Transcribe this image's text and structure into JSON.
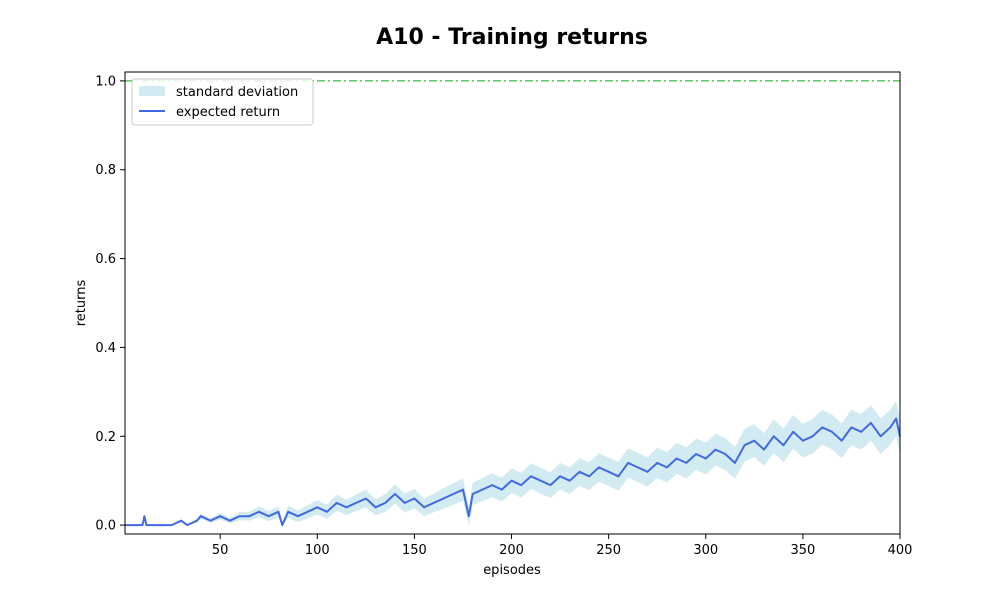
{
  "chart_data": {
    "type": "line",
    "title": "A10 - Training returns",
    "xlabel": "episodes",
    "ylabel": "returns",
    "xlim": [
      1,
      400
    ],
    "ylim": [
      -0.02,
      1.02
    ],
    "xticks": [
      50,
      100,
      150,
      200,
      250,
      300,
      350,
      400
    ],
    "yticks": [
      0.0,
      0.2,
      0.4,
      0.6,
      0.8,
      1.0
    ],
    "ytick_labels": [
      "0.0",
      "0.2",
      "0.4",
      "0.6",
      "0.8",
      "1.0"
    ],
    "grid": false,
    "legend": {
      "position": "upper-left",
      "entries": [
        "standard deviation",
        "expected return"
      ]
    },
    "reference_line": {
      "y": 1.0,
      "style": "dash-dot",
      "color": "#3cb83c"
    },
    "colors": {
      "mean": "#4169e1",
      "band": "#add8e6"
    },
    "series": [
      {
        "name": "expected return",
        "x": [
          1,
          10,
          11,
          12,
          20,
          25,
          30,
          33,
          38,
          40,
          45,
          50,
          55,
          60,
          65,
          70,
          75,
          80,
          82,
          85,
          90,
          95,
          100,
          105,
          110,
          115,
          120,
          125,
          130,
          135,
          140,
          145,
          150,
          155,
          160,
          165,
          170,
          175,
          178,
          180,
          185,
          190,
          195,
          200,
          205,
          210,
          215,
          220,
          225,
          230,
          235,
          240,
          245,
          250,
          255,
          260,
          265,
          270,
          275,
          280,
          285,
          290,
          295,
          300,
          305,
          310,
          315,
          320,
          325,
          330,
          335,
          340,
          345,
          350,
          355,
          360,
          365,
          370,
          375,
          380,
          385,
          390,
          395,
          398,
          400
        ],
        "values": [
          0.0,
          0.0,
          0.02,
          0.0,
          0.0,
          0.0,
          0.01,
          0.0,
          0.01,
          0.02,
          0.01,
          0.02,
          0.01,
          0.02,
          0.02,
          0.03,
          0.02,
          0.03,
          0.0,
          0.03,
          0.02,
          0.03,
          0.04,
          0.03,
          0.05,
          0.04,
          0.05,
          0.06,
          0.04,
          0.05,
          0.07,
          0.05,
          0.06,
          0.04,
          0.05,
          0.06,
          0.07,
          0.08,
          0.02,
          0.07,
          0.08,
          0.09,
          0.08,
          0.1,
          0.09,
          0.11,
          0.1,
          0.09,
          0.11,
          0.1,
          0.12,
          0.11,
          0.13,
          0.12,
          0.11,
          0.14,
          0.13,
          0.12,
          0.14,
          0.13,
          0.15,
          0.14,
          0.16,
          0.15,
          0.17,
          0.16,
          0.14,
          0.18,
          0.19,
          0.17,
          0.2,
          0.18,
          0.21,
          0.19,
          0.2,
          0.22,
          0.21,
          0.19,
          0.22,
          0.21,
          0.23,
          0.2,
          0.22,
          0.24,
          0.2
        ]
      },
      {
        "name": "standard deviation",
        "x": [
          1,
          10,
          11,
          12,
          20,
          25,
          30,
          33,
          38,
          40,
          45,
          50,
          55,
          60,
          65,
          70,
          75,
          80,
          82,
          85,
          90,
          95,
          100,
          105,
          110,
          115,
          120,
          125,
          130,
          135,
          140,
          145,
          150,
          155,
          160,
          165,
          170,
          175,
          178,
          180,
          185,
          190,
          195,
          200,
          205,
          210,
          215,
          220,
          225,
          230,
          235,
          240,
          245,
          250,
          255,
          260,
          265,
          270,
          275,
          280,
          285,
          290,
          295,
          300,
          305,
          310,
          315,
          320,
          325,
          330,
          335,
          340,
          345,
          350,
          355,
          360,
          365,
          370,
          375,
          380,
          385,
          390,
          395,
          398,
          400
        ],
        "values": [
          0.0,
          0.0,
          0.004,
          0.0,
          0.0,
          0.0,
          0.003,
          0.0,
          0.004,
          0.006,
          0.005,
          0.008,
          0.006,
          0.009,
          0.01,
          0.012,
          0.011,
          0.013,
          0.008,
          0.014,
          0.013,
          0.015,
          0.016,
          0.016,
          0.018,
          0.017,
          0.019,
          0.02,
          0.018,
          0.02,
          0.022,
          0.021,
          0.022,
          0.02,
          0.021,
          0.023,
          0.024,
          0.025,
          0.02,
          0.025,
          0.026,
          0.027,
          0.027,
          0.028,
          0.028,
          0.029,
          0.029,
          0.029,
          0.03,
          0.03,
          0.031,
          0.031,
          0.032,
          0.032,
          0.032,
          0.033,
          0.033,
          0.033,
          0.034,
          0.034,
          0.035,
          0.035,
          0.035,
          0.036,
          0.036,
          0.036,
          0.036,
          0.037,
          0.037,
          0.037,
          0.038,
          0.038,
          0.038,
          0.038,
          0.039,
          0.039,
          0.039,
          0.039,
          0.04,
          0.04,
          0.04,
          0.04,
          0.04,
          0.04,
          0.04
        ]
      }
    ]
  }
}
